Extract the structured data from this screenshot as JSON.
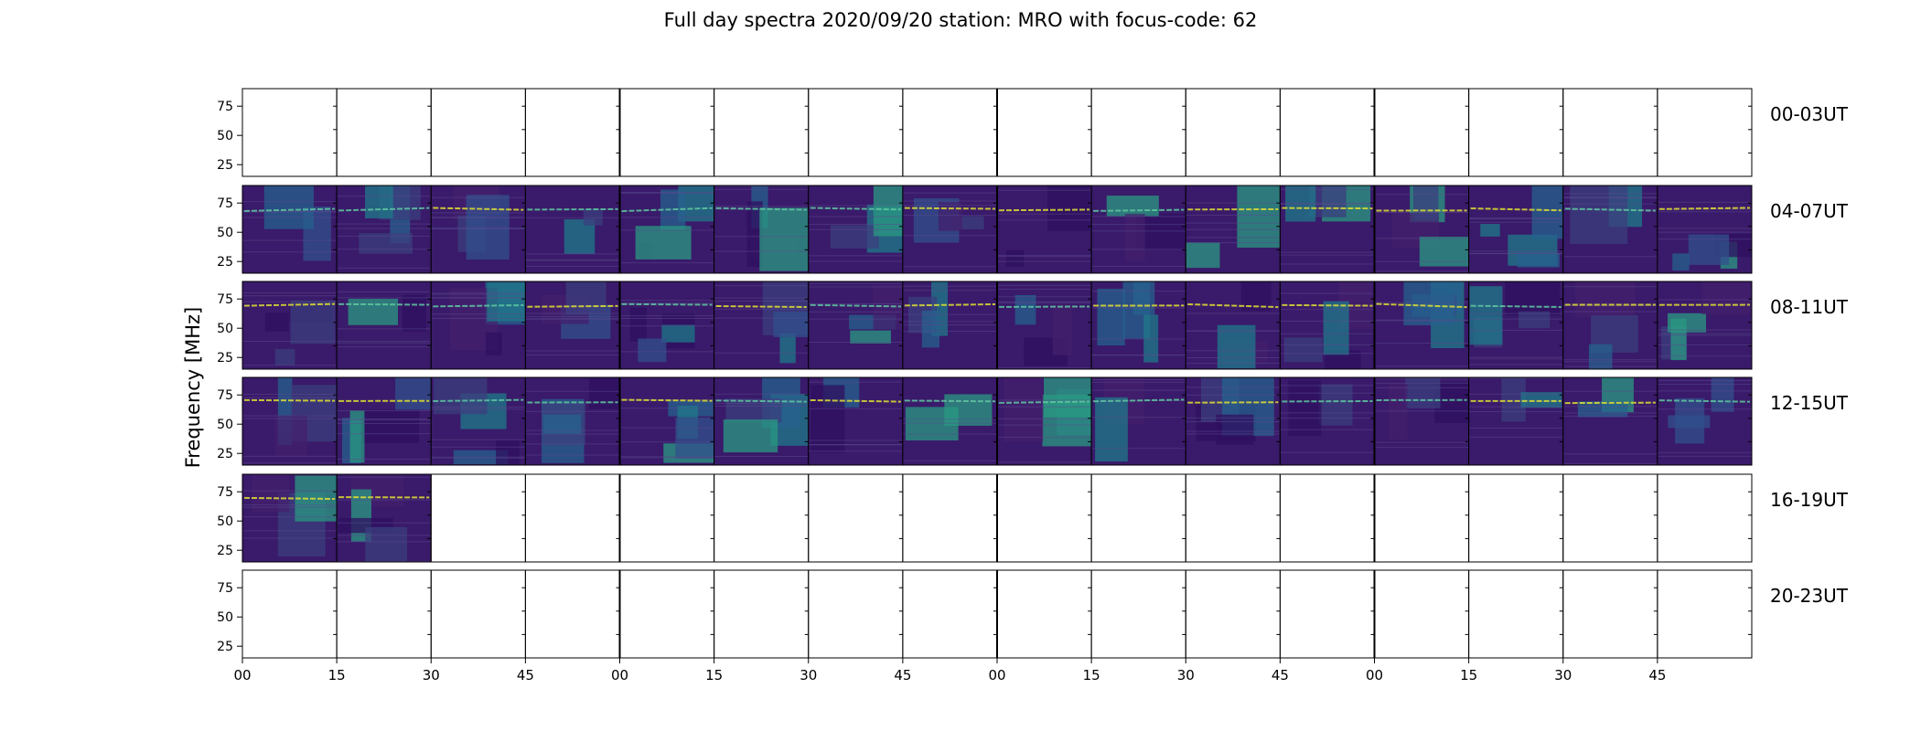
{
  "chart_data": {
    "type": "heatmap",
    "title": "Full day spectra 2020/09/20 station: MRO with focus-code: 62",
    "ylabel": "Frequency [MHz]",
    "xlabel": "",
    "ylim": [
      15,
      90
    ],
    "yticks": [
      "75",
      "50",
      "25"
    ],
    "xticks": [
      "00",
      "15",
      "30",
      "45",
      "00",
      "15",
      "30",
      "45",
      "00",
      "15",
      "30",
      "45",
      "00",
      "15",
      "30",
      "45"
    ],
    "rows": [
      {
        "label": "00-03UT",
        "panels_with_data": 0
      },
      {
        "label": "04-07UT",
        "panels_with_data": 16
      },
      {
        "label": "08-11UT",
        "panels_with_data": 16
      },
      {
        "label": "12-15UT",
        "panels_with_data": 16
      },
      {
        "label": "16-19UT",
        "panels_with_data": 2
      },
      {
        "label": "20-23UT",
        "panels_with_data": 0
      }
    ],
    "panels_per_row": 16,
    "minutes_per_panel": 15,
    "colormap": "viridis",
    "background_color": "#3a1a6a",
    "band_color": "#e0e033"
  }
}
